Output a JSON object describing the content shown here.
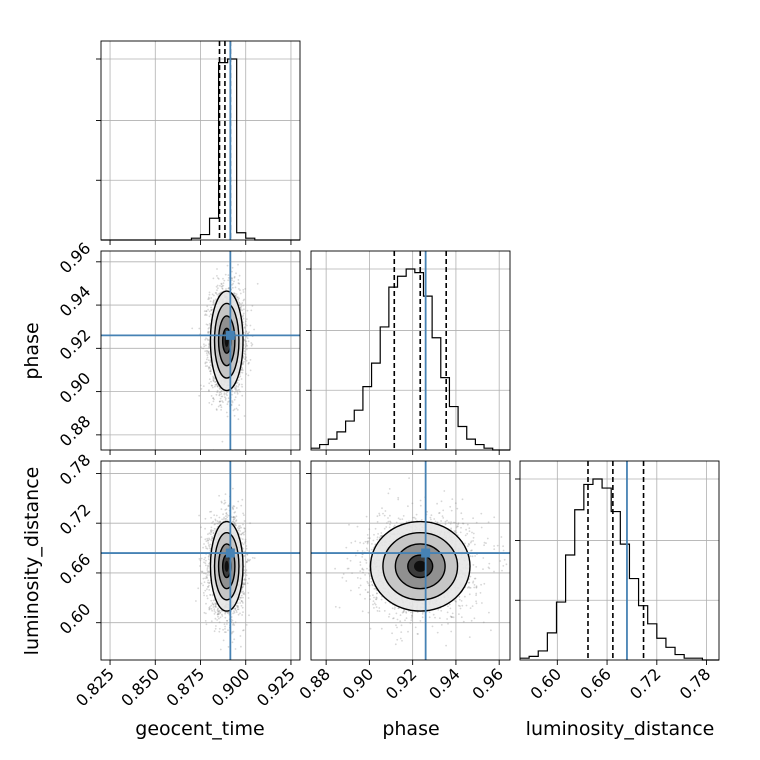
{
  "chart_data": {
    "type": "corner",
    "grid": true,
    "colors": {
      "truth": "#4682b4",
      "histogram": "#000000",
      "scatter": "#8c8c8c",
      "grid": "#b0b0b0"
    },
    "parameters": [
      {
        "name": "geocent_time",
        "label": "geocent_time",
        "range": [
          0.82,
          0.93
        ],
        "ticks": [
          "0.825",
          "0.850",
          "0.875",
          "0.900",
          "0.925"
        ],
        "truth": 0.8915,
        "quantiles": [
          0.8855,
          0.8885,
          0.8915
        ],
        "hist_bins": [
          0.82,
          0.825,
          0.83,
          0.835,
          0.84,
          0.845,
          0.85,
          0.855,
          0.86,
          0.865,
          0.87,
          0.875,
          0.88,
          0.885,
          0.89,
          0.895,
          0.9,
          0.905,
          0.91,
          0.915,
          0.92,
          0.925,
          0.93
        ],
        "hist_counts": [
          0,
          0,
          0,
          0,
          0,
          0,
          0,
          0,
          0,
          0,
          0.01,
          0.03,
          0.12,
          0.98,
          1.0,
          0.04,
          0.01,
          0,
          0,
          0,
          0,
          0
        ],
        "mean": 0.8895,
        "std": 0.0045
      },
      {
        "name": "phase",
        "label": "phase",
        "range": [
          0.873,
          0.965
        ],
        "ticks": [
          "0.88",
          "0.90",
          "0.92",
          "0.94",
          "0.96"
        ],
        "truth": 0.926,
        "quantiles": [
          0.9115,
          0.9235,
          0.9355
        ],
        "hist_bins": [
          0.873,
          0.877,
          0.881,
          0.885,
          0.889,
          0.893,
          0.897,
          0.901,
          0.905,
          0.909,
          0.913,
          0.917,
          0.921,
          0.925,
          0.929,
          0.933,
          0.937,
          0.941,
          0.945,
          0.949,
          0.953,
          0.957,
          0.961,
          0.965
        ],
        "hist_counts": [
          0.01,
          0.03,
          0.06,
          0.1,
          0.16,
          0.22,
          0.35,
          0.48,
          0.68,
          0.9,
          0.96,
          1.0,
          0.98,
          0.85,
          0.62,
          0.4,
          0.24,
          0.13,
          0.06,
          0.03,
          0.01,
          0.0,
          0.0
        ],
        "mean": 0.9235,
        "std": 0.0115
      },
      {
        "name": "luminosity_distance",
        "label": "luminosity_distance",
        "range": [
          0.555,
          0.795
        ],
        "ticks": [
          "0.60",
          "0.66",
          "0.72",
          "0.78"
        ],
        "truth": 0.684,
        "quantiles": [
          0.637,
          0.667,
          0.704
        ],
        "hist_bins": [
          0.555,
          0.566,
          0.577,
          0.588,
          0.599,
          0.61,
          0.621,
          0.632,
          0.643,
          0.654,
          0.665,
          0.676,
          0.687,
          0.698,
          0.709,
          0.72,
          0.731,
          0.742,
          0.753,
          0.764,
          0.775,
          0.786,
          0.795
        ],
        "hist_counts": [
          0.01,
          0.02,
          0.05,
          0.15,
          0.32,
          0.58,
          0.83,
          0.97,
          1.0,
          0.95,
          0.82,
          0.64,
          0.45,
          0.3,
          0.2,
          0.12,
          0.07,
          0.03,
          0.01,
          0.01,
          0.0,
          0.0
        ],
        "mean": 0.668,
        "std": 0.027
      }
    ],
    "pairs": [
      {
        "x": 0,
        "y": 1,
        "rho": 0.0
      },
      {
        "x": 0,
        "y": 2,
        "rho": 0.0
      },
      {
        "x": 1,
        "y": 2,
        "rho": 0.05
      }
    ]
  }
}
